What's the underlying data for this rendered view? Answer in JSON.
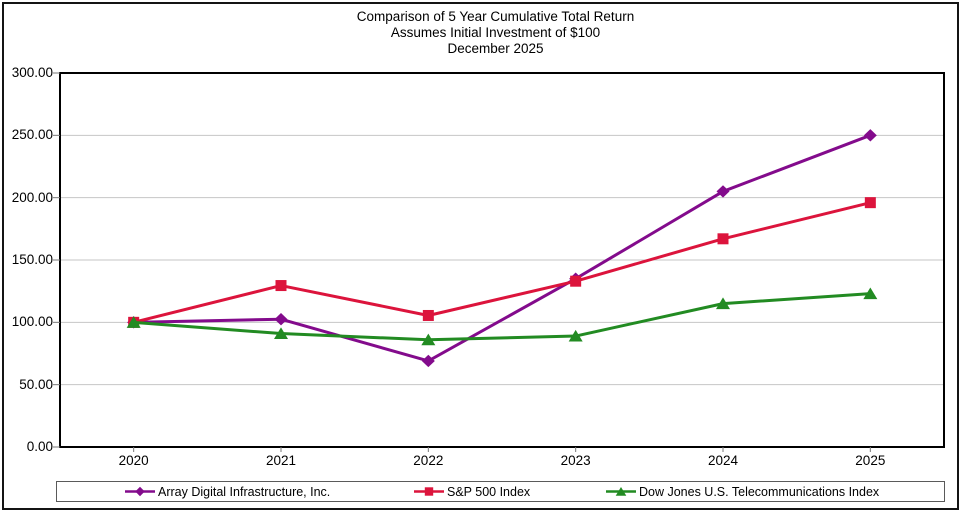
{
  "title": {
    "line1": "Comparison of 5 Year Cumulative Total Return",
    "line2": "Assumes Initial Investment of $100",
    "line3": "December 2025"
  },
  "chart_data": {
    "type": "line",
    "categories": [
      "2020",
      "2021",
      "2022",
      "2023",
      "2024",
      "2025"
    ],
    "series": [
      {
        "name": "Array Digital Infrastructure, Inc.",
        "color": "#830B8C",
        "marker": "diamond",
        "values": [
          100,
          102.5,
          69,
          135,
          205,
          250
        ]
      },
      {
        "name": "S&P 500 Index",
        "color": "#DC143C",
        "marker": "square",
        "values": [
          100,
          129.5,
          105.5,
          133,
          167,
          196
        ]
      },
      {
        "name": "Dow Jones U.S. Telecommunications Index",
        "color": "#228B22",
        "marker": "triangle",
        "values": [
          100,
          91,
          86,
          89,
          115,
          123
        ]
      }
    ],
    "ylim": [
      0,
      300
    ],
    "ytick_step": 50,
    "ytick_labels": [
      "0.00",
      "50.00",
      "100.00",
      "150.00",
      "200.00",
      "250.00",
      "300.00"
    ],
    "grid": true,
    "legend_position": "bottom"
  },
  "colors": {
    "grid": "#C6C6C6",
    "axis_border": "#000000",
    "tick": "#777777",
    "background": "#FFFFFF"
  }
}
